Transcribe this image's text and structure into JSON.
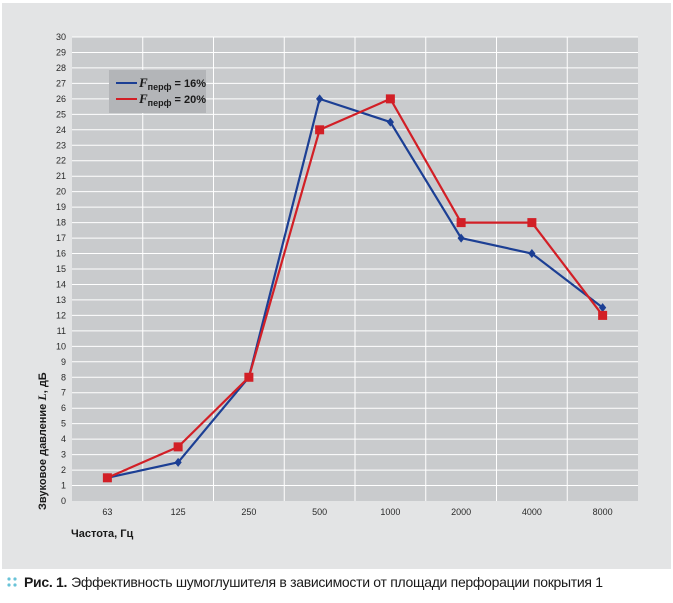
{
  "chart_data": {
    "type": "line",
    "categories": [
      "63",
      "125",
      "250",
      "500",
      "1000",
      "2000",
      "4000",
      "8000"
    ],
    "series": [
      {
        "name": "Fперф = 16%",
        "name_main": "F",
        "name_sub": "перф",
        "name_tail": " = 16%",
        "color": "#1c3f94",
        "marker": "diamond",
        "values": [
          1.5,
          2.5,
          8,
          26,
          24.5,
          17,
          16,
          12.5
        ]
      },
      {
        "name": "Fперф = 20%",
        "name_main": "F",
        "name_sub": "перф",
        "name_tail": " = 20%",
        "color": "#d21f26",
        "marker": "square",
        "values": [
          1.5,
          3.5,
          8,
          24,
          26,
          18,
          18,
          12
        ]
      }
    ],
    "y_ticks": [
      "0",
      "1",
      "2",
      "3",
      "4",
      "5",
      "6",
      "7",
      "8",
      "9",
      "10",
      "11",
      "12",
      "13",
      "14",
      "15",
      "16",
      "17",
      "18",
      "19",
      "20",
      "21",
      "22",
      "23",
      "24",
      "25",
      "26",
      "27",
      "28",
      "29",
      "30"
    ],
    "ylim": [
      0,
      30
    ],
    "xlabel": "Частота, Гц",
    "ylabel_pre": "Звуковое давление ",
    "ylabel_var": "L",
    "ylabel_post": ", дБ",
    "grid": true,
    "legend_position": "top-left"
  },
  "caption": {
    "number": "Рис. 1.",
    "text": "Эффективность шумоглушителя в зависимости от площади перфорации покрытия 1"
  },
  "colors": {
    "background": "#e3e4e5",
    "plot_area": "#c9cbcd",
    "grid": "#ffffff",
    "legend_box": "#b3b5b8",
    "dots": "#69c3d8"
  }
}
